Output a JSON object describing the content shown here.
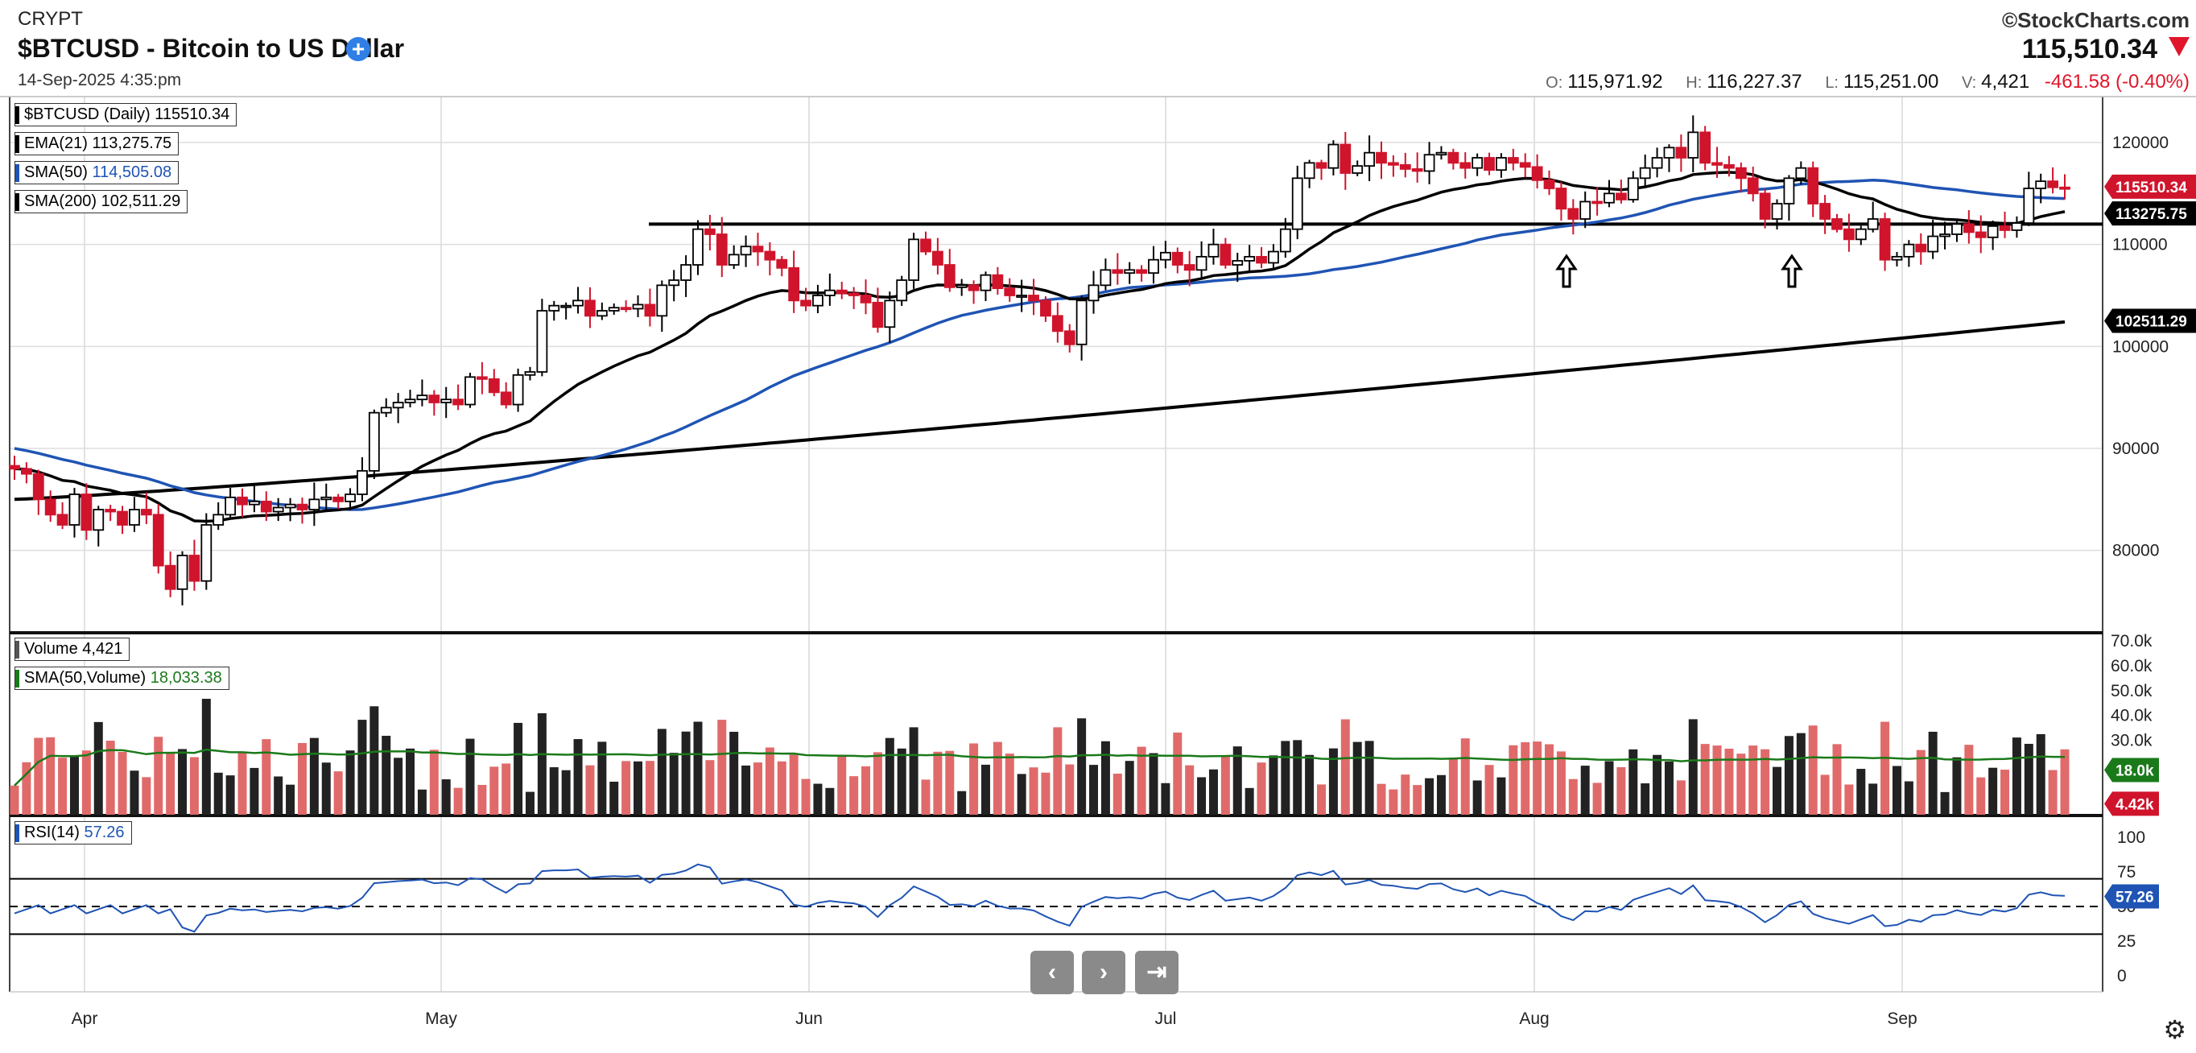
{
  "header": {
    "exchange": "CRYPT",
    "title": "$BTCUSD - Bitcoin to US Dollar",
    "add_symbol": "+",
    "date": "14-Sep-2025 4:35:pm",
    "brand": "©StockCharts.com",
    "last_price": "115,510.34",
    "open_label": "O:",
    "open": "115,971.92",
    "high_label": "H:",
    "high": "116,227.37",
    "low_label": "L:",
    "low": "115,251.00",
    "vol_label": "V:",
    "volume": "4,421",
    "change": "-461.58 (-0.40%)"
  },
  "legends": {
    "price": "$BTCUSD (Daily) 115510.34",
    "ema21_name": "EMA(21)",
    "ema21_val": "113,275.75",
    "sma50_name": "SMA(50)",
    "sma50_val": "114,505.08",
    "sma200_name": "SMA(200)",
    "sma200_val": "102,511.29",
    "volume_name": "Volume",
    "volume_val": "4,421",
    "volsma_name": "SMA(50,Volume)",
    "volsma_val": "18,033.38",
    "rsi_name": "RSI(14)",
    "rsi_val": "57.26"
  },
  "right_tags": {
    "price": "115510.34",
    "ema21": "113275.75",
    "sma200": "102511.29",
    "volsma": "18.0k",
    "volume": "4.42k",
    "rsi": "57.26"
  },
  "colors": {
    "up": "#000000",
    "down": "#d0142c",
    "sma50": "#1f54b4",
    "ema": "#000000",
    "vol_up": "#222222",
    "vol_down": "#e06a6a",
    "vol_sma": "#1a7a1a",
    "rsi": "#1f54b4"
  },
  "navigation": {
    "prev": "‹",
    "next": "›",
    "end": "⇥"
  },
  "settings_icon": "gear-icon",
  "chart_data": {
    "type": "candlestick",
    "title": "$BTCUSD - Bitcoin to US Dollar",
    "period": "Daily",
    "x_tick_labels": [
      "Apr",
      "May",
      "Jun",
      "Jul",
      "Aug",
      "Sep"
    ],
    "price_ticks": [
      80000,
      90000,
      100000,
      110000,
      120000
    ],
    "price_ylim": [
      72000,
      124500
    ],
    "volume_ticks": [
      "30.0k",
      "40.0k",
      "50.0k",
      "60.0k",
      "70.0k"
    ],
    "volume_ylim": [
      0,
      72000
    ],
    "rsi_ticks": [
      0,
      25,
      50,
      75,
      100
    ],
    "rsi_bands": [
      30,
      50,
      70
    ],
    "horizontal_line": 112000,
    "annotations": [
      "up-arrow",
      "up-arrow"
    ],
    "indicators": [
      "EMA(21)",
      "SMA(50)",
      "SMA(200)",
      "Volume",
      "SMA(50,Volume)",
      "RSI(14)"
    ],
    "closes": [
      88000,
      87500,
      85000,
      83500,
      82500,
      85500,
      82000,
      84000,
      83800,
      82500,
      84000,
      83500,
      78500,
      76200,
      79500,
      77000,
      82500,
      83500,
      85200,
      84500,
      84800,
      83800,
      84200,
      84500,
      84000,
      85000,
      85200,
      84800,
      85500,
      87800,
      93500,
      94000,
      94500,
      94800,
      95200,
      94500,
      94800,
      94300,
      97000,
      96800,
      95500,
      94300,
      97200,
      97500,
      103500,
      104000,
      104000,
      104500,
      103000,
      103500,
      103800,
      103700,
      104100,
      103000,
      106000,
      106500,
      108000,
      111500,
      111000,
      108000,
      109000,
      109800,
      109300,
      108500,
      107700,
      104500,
      104000,
      105000,
      105500,
      105200,
      105000,
      104300,
      101900,
      104500,
      106500,
      110500,
      109300,
      108000,
      105800,
      106000,
      105500,
      107000,
      105700,
      105000,
      105000,
      104500,
      103000,
      101500,
      100200,
      104500,
      106000,
      107500,
      107200,
      107500,
      107200,
      108500,
      109200,
      108000,
      107500,
      108800,
      110000,
      108000,
      108400,
      108800,
      108200,
      109300,
      111500,
      116500,
      118000,
      117500,
      119800,
      117000,
      117700,
      119000,
      118000,
      117800,
      117400,
      117200,
      118800,
      119000,
      118000,
      117500,
      118500,
      117300,
      118500,
      118000,
      117600,
      116300,
      115500,
      113500,
      112500,
      114200,
      114100,
      115000,
      114400,
      116500,
      117500,
      118500,
      119500,
      118500,
      121000,
      118000,
      117800,
      117500,
      116500,
      115000,
      112500,
      114000,
      116500,
      117500,
      114000,
      112500,
      111500,
      110500,
      111500,
      112500,
      108500,
      108800,
      110000,
      109300,
      110800,
      111000,
      112000,
      111200,
      110700,
      111800,
      111400,
      112100,
      115500,
      116200,
      115600,
      115500
    ]
  }
}
